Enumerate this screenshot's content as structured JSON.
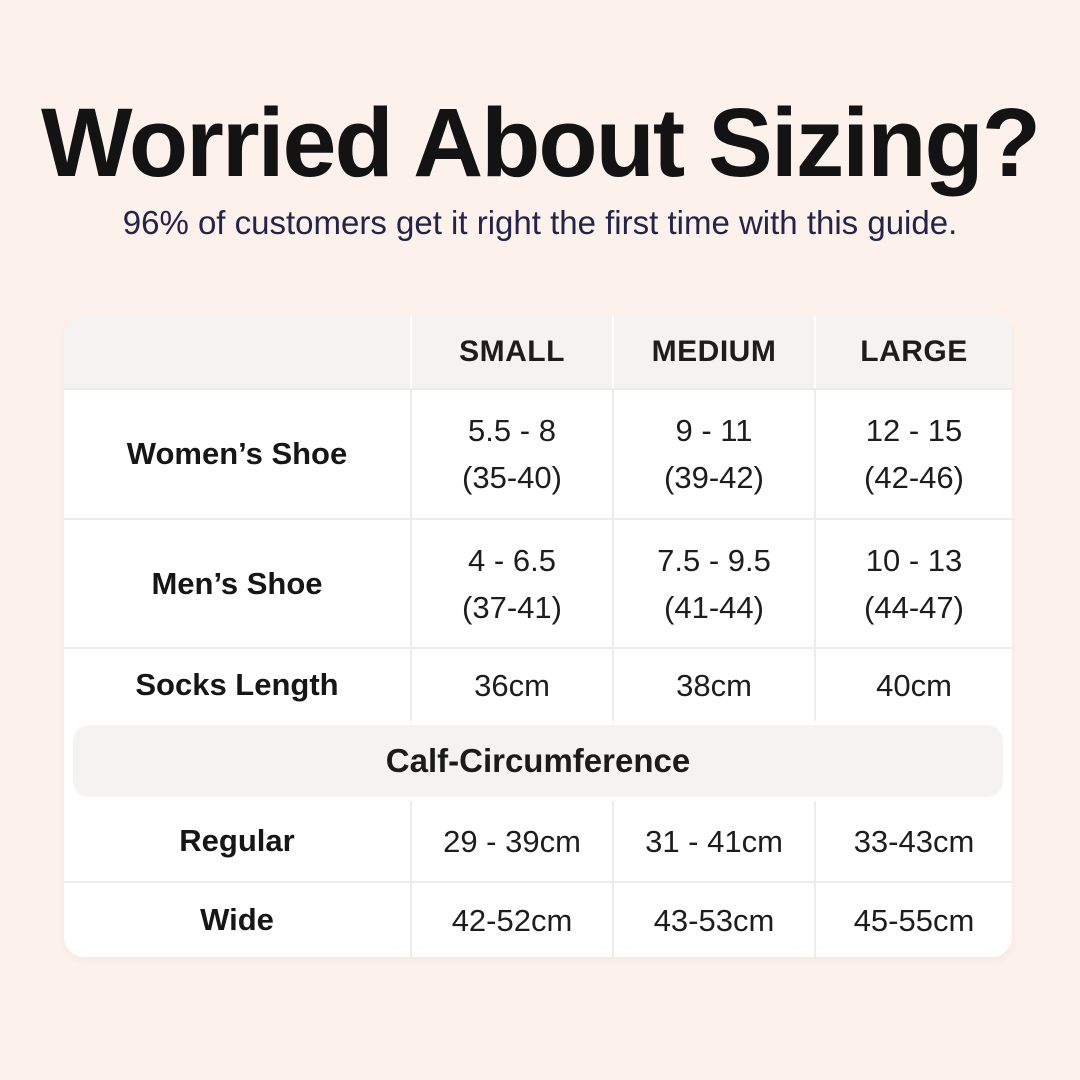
{
  "header": {
    "title": "Worried About Sizing?",
    "subtitle": "96% of customers get it right the first time with this guide."
  },
  "colors": {
    "background": "#fcf2eb",
    "card": "#ffffff",
    "band": "#f4f3f1",
    "divider": "#ececea",
    "title_text": "#131313",
    "subtitle_text": "#24244a",
    "table_text": "#1d1d1d"
  },
  "chart_data": {
    "type": "table",
    "title": "Worried About Sizing?",
    "subtitle": "96% of customers get it right the first time with this guide.",
    "columns": [
      "",
      "SMALL",
      "MEDIUM",
      "LARGE"
    ],
    "shoe_rows": [
      {
        "label": "Women’s Shoe",
        "small": [
          "5.5 - 8",
          "(35-40)"
        ],
        "medium": [
          "9 - 11",
          "(39-42)"
        ],
        "large": [
          "12 - 15",
          "(42-46)"
        ]
      },
      {
        "label": "Men’s Shoe",
        "small": [
          "4 - 6.5",
          "(37-41)"
        ],
        "medium": [
          "7.5 - 9.5",
          "(41-44)"
        ],
        "large": [
          "10 - 13",
          "(44-47)"
        ]
      }
    ],
    "socks_length_row": {
      "label": "Socks Length",
      "small": "36cm",
      "medium": "38cm",
      "large": "40cm"
    },
    "section_header": "Calf-Circumference",
    "calf_rows": [
      {
        "label": "Regular",
        "small": "29 - 39cm",
        "medium": "31 - 41cm",
        "large": "33-43cm"
      },
      {
        "label": "Wide",
        "small": "42-52cm",
        "medium": "43-53cm",
        "large": "45-55cm"
      }
    ]
  }
}
